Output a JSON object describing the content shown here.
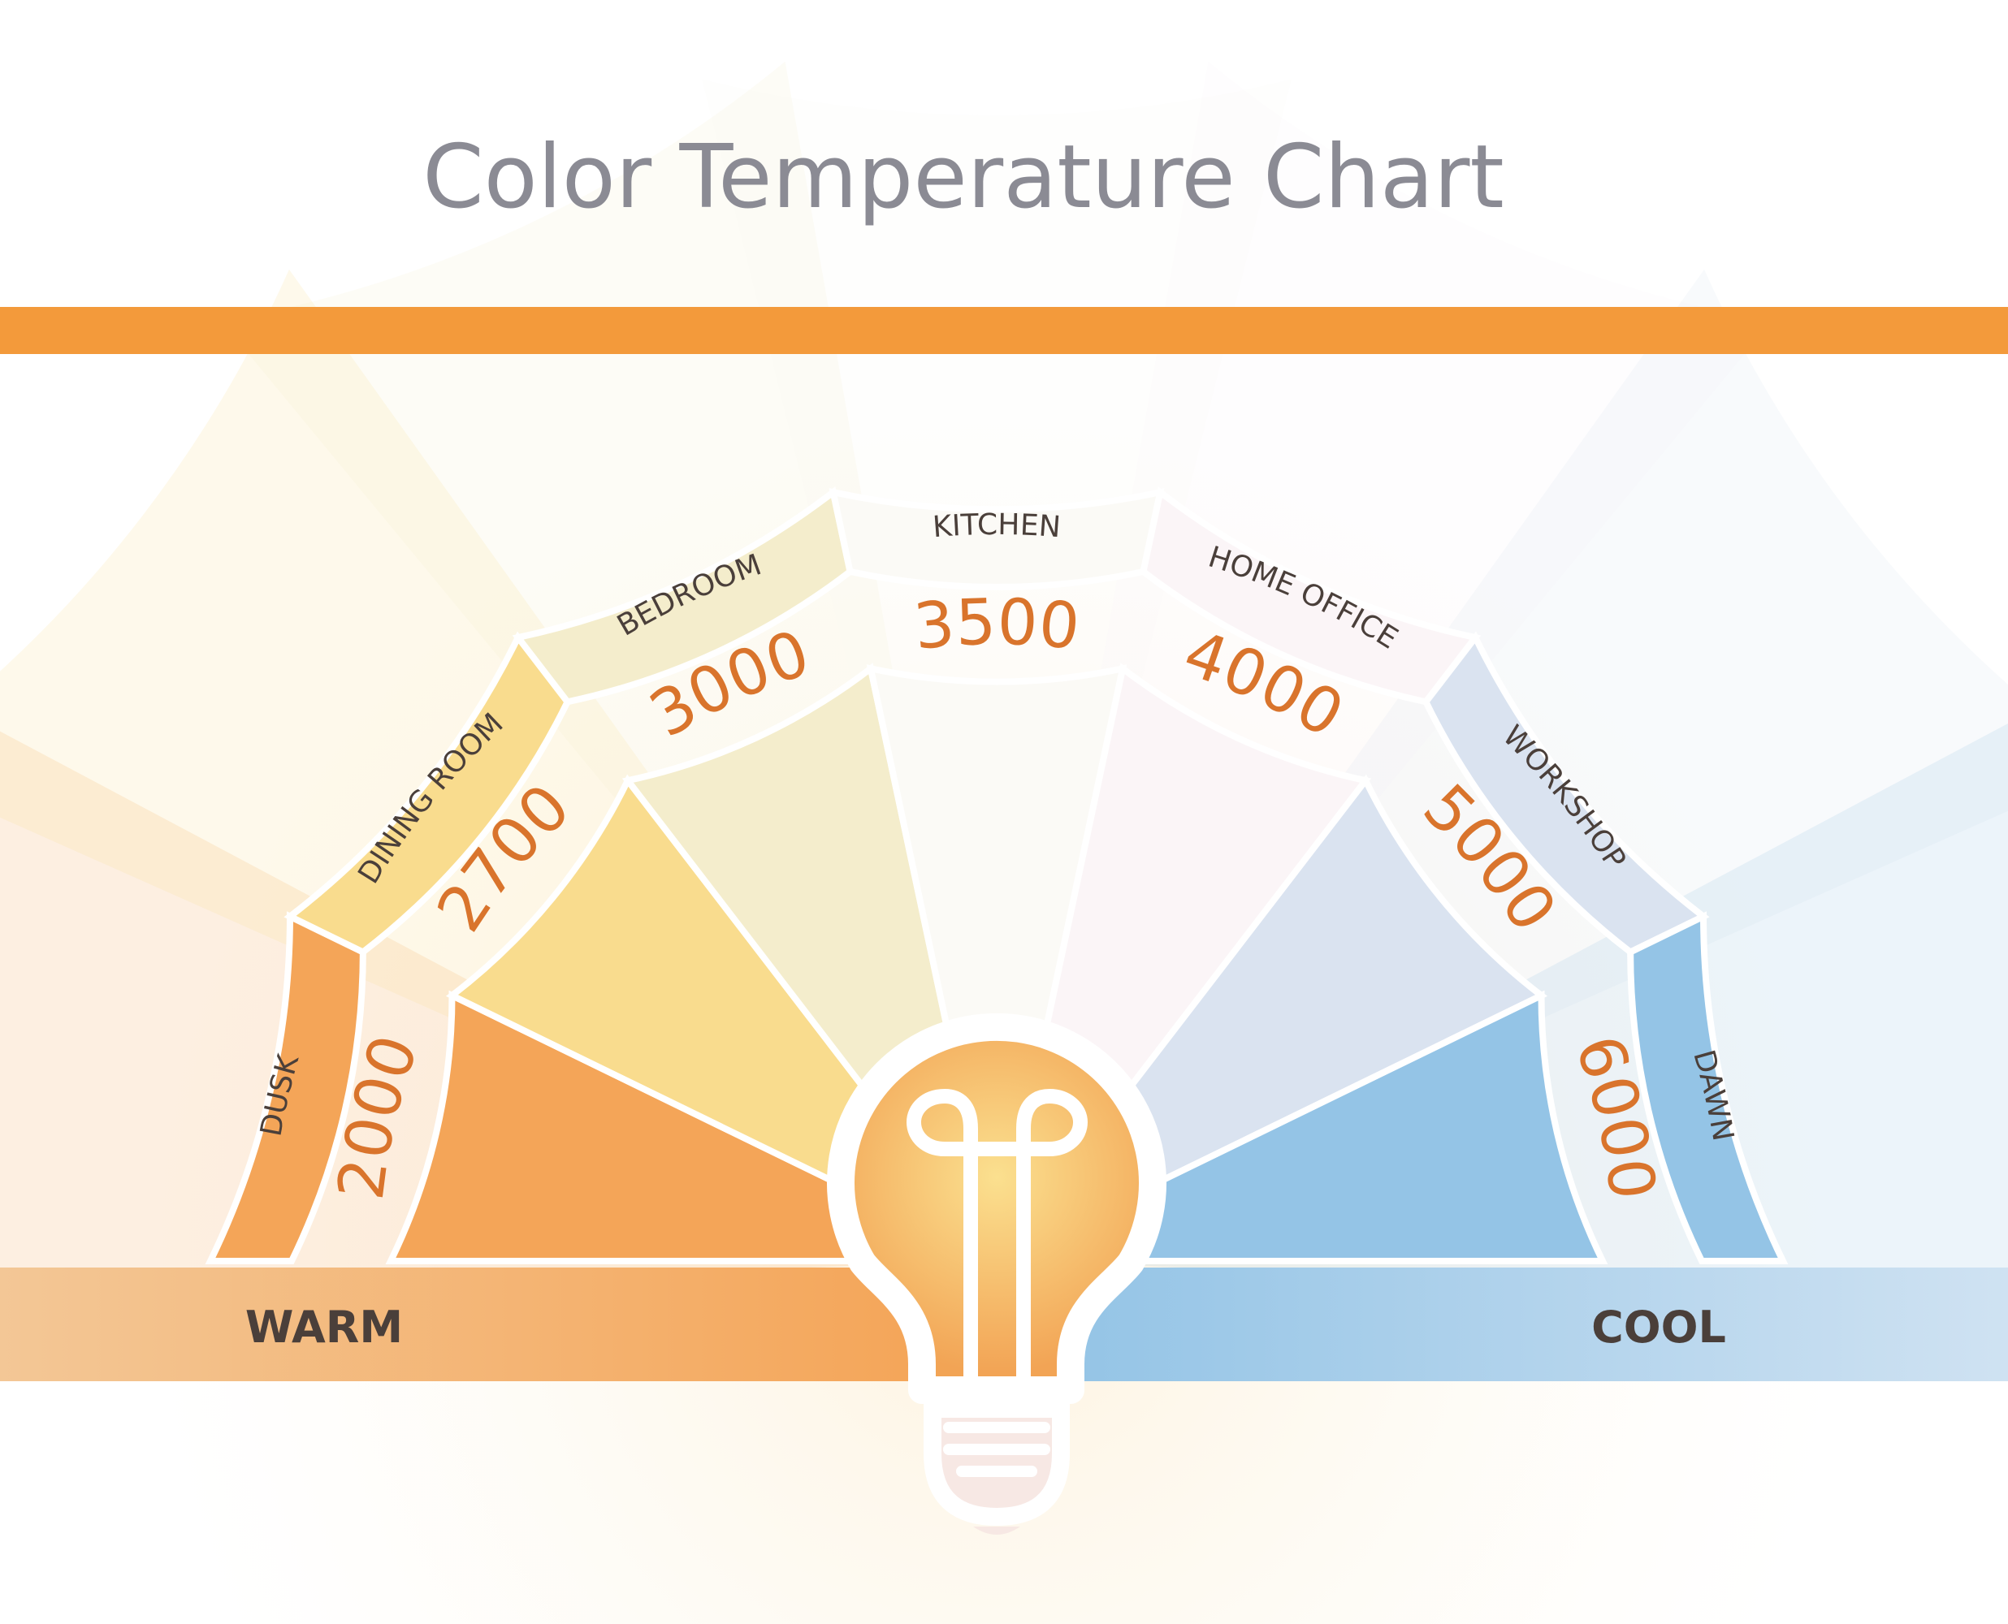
{
  "title": "Color Temperature Chart",
  "colors": {
    "title": "#8b8b94",
    "bar": "#f39a3b",
    "label": "#4a3f3a",
    "kelvin": "#d9742c",
    "warm_band_start": "#f3c796",
    "warm_band_end": "#f4a558",
    "cool_band_start": "#94c4e6",
    "cool_band_end": "#cfe2f2",
    "bulb_glow_center": "#fbe08f",
    "bulb_glow_edge": "#f2a455",
    "bulb_base": "#f7e8e4"
  },
  "segments": [
    {
      "label": "DUSK",
      "kelvin": "2000",
      "color": "#f4a558"
    },
    {
      "label": "DINING ROOM",
      "kelvin": "2700",
      "color": "#f9dc8e"
    },
    {
      "label": "BEDROOM",
      "kelvin": "3000",
      "color": "#f4edcc"
    },
    {
      "label": "KITCHEN",
      "kelvin": "3500",
      "color": "#fbfaf6"
    },
    {
      "label": "HOME OFFICE",
      "kelvin": "4000",
      "color": "#fbf5f7"
    },
    {
      "label": "WORKSHOP",
      "kelvin": "5000",
      "color": "#dae3f0"
    },
    {
      "label": "DAWN",
      "kelvin": "6000",
      "color": "#94c4e6"
    }
  ],
  "band": {
    "warm": "WARM",
    "cool": "COOL"
  },
  "icons": {
    "bulb": "lightbulb-icon"
  }
}
